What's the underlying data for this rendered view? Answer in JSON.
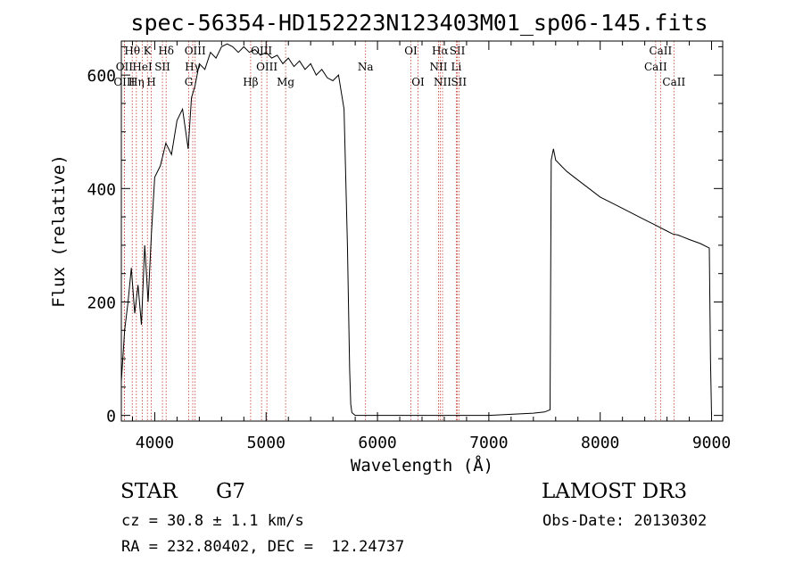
{
  "chart_data": {
    "type": "line",
    "title": "spec-56354-HD152223N123403M01_sp06-145.fits",
    "xlabel": "Wavelength (Å)",
    "ylabel": "Flux (relative)",
    "xlim": [
      3700,
      9100
    ],
    "ylim": [
      -10,
      660
    ],
    "x_ticks": [
      4000,
      5000,
      6000,
      7000,
      8000,
      9000
    ],
    "x_tick_labels": [
      "4000",
      "5000",
      "6000",
      "7000",
      "8000",
      "9000"
    ],
    "y_ticks": [
      0,
      200,
      400,
      600
    ],
    "y_tick_labels": [
      "0",
      "200",
      "400",
      "600"
    ],
    "grid": false,
    "series": [
      {
        "name": "spectrum",
        "x": [
          3700,
          3730,
          3760,
          3790,
          3820,
          3850,
          3880,
          3910,
          3940,
          3970,
          4000,
          4050,
          4100,
          4150,
          4200,
          4250,
          4300,
          4330,
          4360,
          4400,
          4450,
          4500,
          4550,
          4600,
          4650,
          4700,
          4750,
          4800,
          4850,
          4900,
          4950,
          5000,
          5050,
          5100,
          5150,
          5200,
          5250,
          5300,
          5350,
          5400,
          5450,
          5500,
          5550,
          5600,
          5650,
          5700,
          5730,
          5750,
          5760,
          5770,
          5800,
          6000,
          6500,
          7000,
          7200,
          7400,
          7500,
          7550,
          7560,
          7580,
          7600,
          7650,
          7700,
          7800,
          7900,
          8000,
          8100,
          8200,
          8300,
          8400,
          8500,
          8550,
          8600,
          8650,
          8700,
          8800,
          8900,
          8980,
          8990,
          9000
        ],
        "y": [
          60,
          150,
          200,
          260,
          180,
          230,
          160,
          300,
          200,
          320,
          420,
          440,
          480,
          460,
          520,
          540,
          470,
          560,
          580,
          620,
          610,
          640,
          630,
          650,
          655,
          650,
          640,
          650,
          640,
          645,
          635,
          640,
          630,
          635,
          620,
          630,
          615,
          625,
          610,
          620,
          600,
          610,
          595,
          590,
          600,
          540,
          300,
          80,
          20,
          5,
          0,
          0,
          0,
          0,
          2,
          4,
          6,
          10,
          450,
          470,
          450,
          440,
          430,
          415,
          400,
          385,
          375,
          365,
          355,
          345,
          335,
          330,
          325,
          320,
          318,
          310,
          303,
          295,
          100,
          0
        ]
      }
    ],
    "line_markers": [
      {
        "label": "Hθ",
        "x": 3798,
        "row": 0
      },
      {
        "label": "OII",
        "x": 3727,
        "row": 1
      },
      {
        "label": "OIII",
        "x": 3727,
        "row": 2
      },
      {
        "label": "K",
        "x": 3934,
        "row": 0
      },
      {
        "label": "HeI",
        "x": 3889,
        "row": 1
      },
      {
        "label": "Hη",
        "x": 3835,
        "row": 2
      },
      {
        "label": "Hδ",
        "x": 4102,
        "row": 0
      },
      {
        "label": "SII",
        "x": 4069,
        "row": 1
      },
      {
        "label": "H",
        "x": 3969,
        "row": 2
      },
      {
        "label": "OIII",
        "x": 4363,
        "row": 0
      },
      {
        "label": "Hγ",
        "x": 4341,
        "row": 1
      },
      {
        "label": "G",
        "x": 4305,
        "row": 2
      },
      {
        "label": "OIII",
        "x": 4959,
        "row": 0
      },
      {
        "label": "OIII",
        "x": 5007,
        "row": 1
      },
      {
        "label": "Hβ",
        "x": 4861,
        "row": 2
      },
      {
        "label": "Mg",
        "x": 5175,
        "row": 2
      },
      {
        "label": "Na",
        "x": 5893,
        "row": 1
      },
      {
        "label": "OI",
        "x": 6300,
        "row": 0
      },
      {
        "label": "OI",
        "x": 6364,
        "row": 2
      },
      {
        "label": "Hα",
        "x": 6563,
        "row": 0
      },
      {
        "label": "SII",
        "x": 6717,
        "row": 0
      },
      {
        "label": "NII",
        "x": 6548,
        "row": 1
      },
      {
        "label": "Li",
        "x": 6708,
        "row": 1
      },
      {
        "label": "NII",
        "x": 6584,
        "row": 2
      },
      {
        "label": "SII",
        "x": 6731,
        "row": 2
      },
      {
        "label": "CaII",
        "x": 8542,
        "row": 0
      },
      {
        "label": "CaII",
        "x": 8498,
        "row": 1
      },
      {
        "label": "CaII",
        "x": 8662,
        "row": 2
      }
    ]
  },
  "info": {
    "object_type": "STAR",
    "subclass": "G7",
    "survey": "LAMOST DR3",
    "cz": "cz = 30.8 ± 1.1 km/s",
    "obs_date": "Obs-Date: 20130302",
    "coords": "RA = 232.80402, DEC =  12.24737"
  },
  "colors": {
    "line": "#000000",
    "marker": "#c0392b"
  }
}
